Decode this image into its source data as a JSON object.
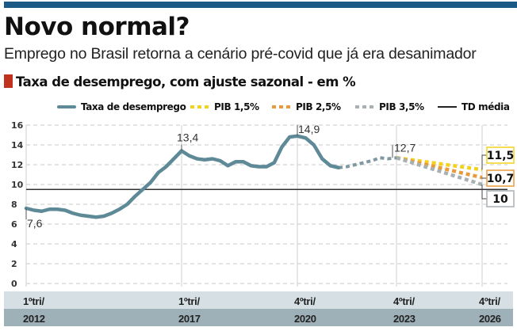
{
  "header": {
    "title": "Novo normal?",
    "subtitle": "Emprego no Brasil retorna a cenário pré-covid que já era desanimador",
    "section_title": "Taxa de desemprego, com ajuste sazonal - em %"
  },
  "colors": {
    "brand_bar": "#1b5a86",
    "section_marker": "#c0321e",
    "series": "#5e8a97",
    "pib15": "#f2d21e",
    "pib25": "#e89a3c",
    "pib35": "#a8b0b4",
    "td": "#333333"
  },
  "chart_data": {
    "type": "line",
    "title": "Taxa de desemprego, com ajuste sazonal - em %",
    "ylim": [
      0,
      16
    ],
    "yticks": [
      "0",
      "2",
      "4",
      "6",
      "8",
      "10",
      "12",
      "14",
      "16"
    ],
    "grid": true,
    "legend_position": "top",
    "x_ticks": [
      {
        "top": "1ºtri/",
        "bottom": "2012",
        "quarter": 0
      },
      {
        "top": "1ºtri/",
        "bottom": "2017",
        "quarter": 20
      },
      {
        "top": "4ºtri/",
        "bottom": "2020",
        "quarter": 35
      },
      {
        "top": "4ºtri/",
        "bottom": "2023",
        "quarter": 47
      },
      {
        "top": "4ºtri/",
        "bottom": "2026",
        "quarter": 59
      }
    ],
    "series": [
      {
        "name": "Taxa de desemprego",
        "style": "solid",
        "start_quarter": "1ºtri/2012",
        "values": [
          7.6,
          7.4,
          7.3,
          7.5,
          7.5,
          7.4,
          7.1,
          6.9,
          6.8,
          6.7,
          6.8,
          7.1,
          7.5,
          8.0,
          8.8,
          9.5,
          10.2,
          11.2,
          11.8,
          12.6,
          13.4,
          12.9,
          12.6,
          12.5,
          12.6,
          12.4,
          11.9,
          12.3,
          12.3,
          11.9,
          11.8,
          11.8,
          12.2,
          13.8,
          14.8,
          14.9,
          14.7,
          14.0,
          12.6,
          11.9,
          11.7
        ]
      },
      {
        "name": "",
        "style": "dashed-gray",
        "start_quarter": "1ºtri/2022",
        "values": [
          11.7,
          11.8,
          12.0,
          12.2,
          12.4,
          12.7,
          12.6,
          12.7
        ]
      },
      {
        "name": "PIB 1,5%",
        "style": "dashed",
        "start_quarter": "4ºtri/2023",
        "end_quarter": "4ºtri/2026",
        "values": [
          12.7,
          11.5
        ]
      },
      {
        "name": "PIB 2,5%",
        "style": "dashed",
        "start_quarter": "4ºtri/2023",
        "end_quarter": "4ºtri/2026",
        "values": [
          12.7,
          10.7
        ]
      },
      {
        "name": "PIB 3,5%",
        "style": "dashed",
        "start_quarter": "4ºtri/2023",
        "end_quarter": "4ºtri/2026",
        "values": [
          12.7,
          10
        ]
      },
      {
        "name": "TD média",
        "style": "solid-black",
        "value": 9.5
      }
    ],
    "annotations": [
      {
        "text": "7,6",
        "value": 7.6,
        "quarter": 0
      },
      {
        "text": "13,4",
        "value": 13.4,
        "quarter": 20
      },
      {
        "text": "14,9",
        "value": 14.9,
        "quarter": 35
      },
      {
        "text": "12,7",
        "value": 12.7,
        "quarter": 47
      },
      {
        "text": "11,5",
        "value": 11.5,
        "quarter": 59
      },
      {
        "text": "10,7",
        "value": 10.7,
        "quarter": 59
      },
      {
        "text": "10",
        "value": 10,
        "quarter": 59
      }
    ]
  }
}
